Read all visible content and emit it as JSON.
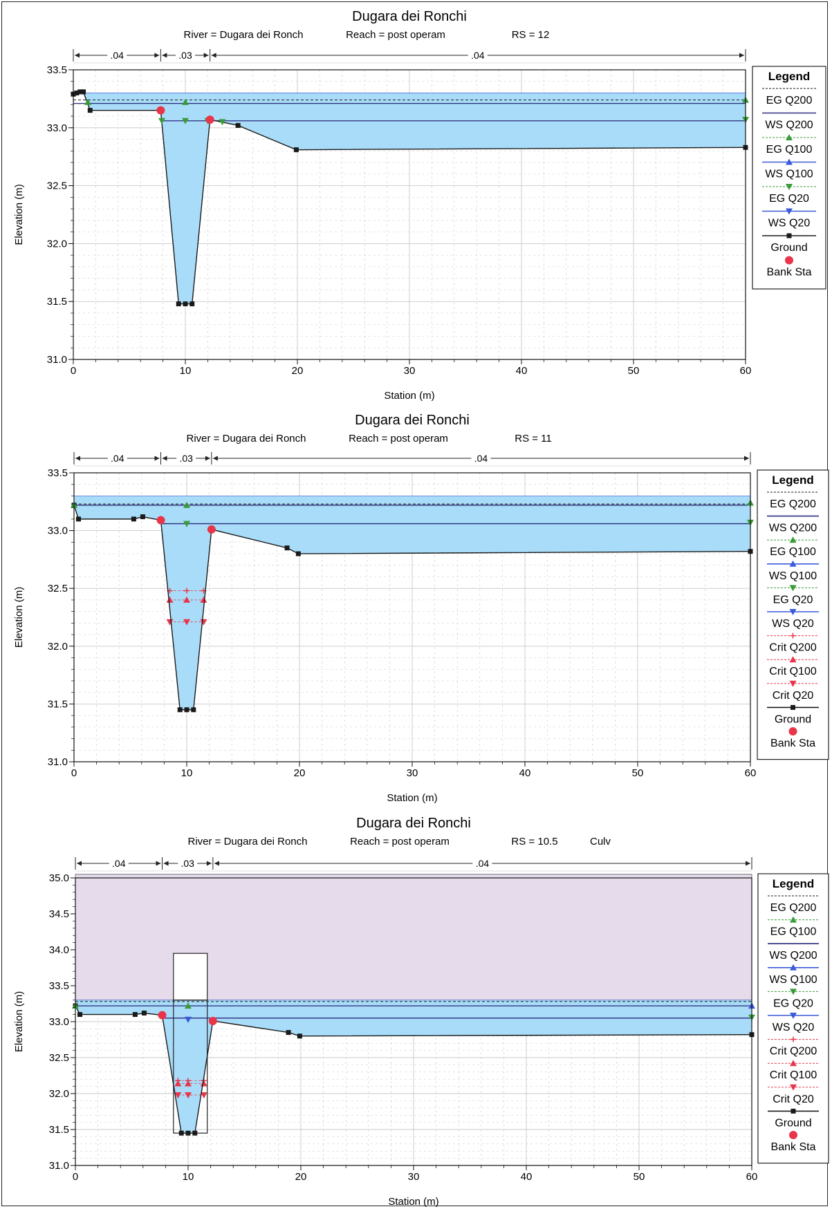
{
  "chart_data": [
    {
      "type": "line",
      "title": "Dugara dei Ronchi",
      "subtitle": {
        "river": "River = Dugara dei Ronch",
        "reach": "Reach = post operam",
        "rs": "RS = 12",
        "extra": ""
      },
      "xlabel": "Station (m)",
      "ylabel": "Elevation (m)",
      "xlim": [
        0,
        60
      ],
      "ylim": [
        31.0,
        33.5
      ],
      "xticks": [
        "0",
        "10",
        "20",
        "30",
        "40",
        "50",
        "60"
      ],
      "yticks": [
        "31.0",
        "31.5",
        "32.0",
        "32.5",
        "33.0",
        "33.5"
      ],
      "manning": [
        {
          "label": ".04",
          "from": 0,
          "to": 7.8
        },
        {
          "label": ".03",
          "from": 7.8,
          "to": 12.2
        },
        {
          "label": ".04",
          "from": 12.2,
          "to": 60
        }
      ],
      "ground": {
        "x": [
          0,
          0.3,
          0.6,
          0.9,
          1.5,
          7.8,
          9.4,
          10,
          10.6,
          12.2,
          14.7,
          19.9,
          60
        ],
        "y": [
          33.29,
          33.3,
          33.31,
          33.31,
          33.15,
          33.15,
          31.48,
          31.48,
          31.48,
          33.07,
          33.02,
          32.81,
          32.83
        ]
      },
      "bank_stations": {
        "x": [
          7.8,
          12.2
        ],
        "y": [
          33.15,
          33.07
        ]
      },
      "water": {
        "eg": 33.24,
        "ws": 33.21,
        "ws_low": 33.06,
        "top": 33.3
      },
      "markers": [
        {
          "x": 10,
          "y": 33.22,
          "shape": "up",
          "color": "#3a9b3a"
        },
        {
          "x": 60,
          "y": 33.24,
          "shape": "up",
          "color": "#3a9b3a"
        },
        {
          "x": 1.3,
          "y": 33.22,
          "shape": "up",
          "color": "#3a9b3a"
        },
        {
          "x": 7.9,
          "y": 33.06,
          "shape": "down",
          "color": "#3a9b3a"
        },
        {
          "x": 10,
          "y": 33.06,
          "shape": "down",
          "color": "#3a9b3a"
        },
        {
          "x": 12.0,
          "y": 33.06,
          "shape": "down",
          "color": "#3a9b3a"
        },
        {
          "x": 13.3,
          "y": 33.05,
          "shape": "down",
          "color": "#3a9b3a"
        },
        {
          "x": 60,
          "y": 33.07,
          "shape": "down",
          "color": "#3a9b3a"
        }
      ],
      "culvert": null,
      "legend_title": "Legend",
      "legend": [
        {
          "label": "EG Q200",
          "style": "dash",
          "color": "#1a1a1a",
          "marker": ""
        },
        {
          "label": "WS Q200",
          "style": "solid",
          "color": "#2a2a7a",
          "marker": ""
        },
        {
          "label": "EG Q100",
          "style": "dash",
          "color": "#3a9b3a",
          "marker": "up"
        },
        {
          "label": "WS Q100",
          "style": "solid",
          "color": "#3a5ad8",
          "marker": "up"
        },
        {
          "label": "EG Q20",
          "style": "dash",
          "color": "#3a9b3a",
          "marker": "down"
        },
        {
          "label": "WS Q20",
          "style": "solid",
          "color": "#3a5ad8",
          "marker": "down"
        },
        {
          "label": "Ground",
          "style": "solid",
          "color": "#1a1a1a",
          "marker": "square"
        },
        {
          "label": "Bank Sta",
          "style": "none",
          "color": "#e8354a",
          "marker": "circle"
        }
      ]
    },
    {
      "type": "line",
      "title": "Dugara dei Ronchi",
      "subtitle": {
        "river": "River = Dugara dei Ronch",
        "reach": "Reach = post operam",
        "rs": "RS = 11",
        "extra": ""
      },
      "xlabel": "Station (m)",
      "ylabel": "Elevation (m)",
      "xlim": [
        0,
        60
      ],
      "ylim": [
        31.0,
        33.5
      ],
      "xticks": [
        "0",
        "10",
        "20",
        "30",
        "40",
        "50",
        "60"
      ],
      "yticks": [
        "31.0",
        "31.5",
        "32.0",
        "32.5",
        "33.0",
        "33.5"
      ],
      "manning": [
        {
          "label": ".04",
          "from": 0,
          "to": 7.7
        },
        {
          "label": ".03",
          "from": 7.7,
          "to": 12.2
        },
        {
          "label": ".04",
          "from": 12.2,
          "to": 60
        }
      ],
      "ground": {
        "x": [
          0,
          0.4,
          5.3,
          6.1,
          7.7,
          9.4,
          10,
          10.6,
          12.2,
          18.9,
          19.9,
          60
        ],
        "y": [
          33.22,
          33.1,
          33.1,
          33.12,
          33.09,
          31.45,
          31.45,
          31.45,
          33.01,
          32.85,
          32.8,
          32.82
        ]
      },
      "bank_stations": {
        "x": [
          7.7,
          12.2
        ],
        "y": [
          33.09,
          33.01
        ]
      },
      "water": {
        "eg": 33.23,
        "ws": 33.22,
        "ws_low": 33.06,
        "top": 33.3
      },
      "crit": [
        32.48,
        32.4,
        32.21
      ],
      "markers": [
        {
          "x": 0,
          "y": 33.22,
          "shape": "up",
          "color": "#3a9b3a"
        },
        {
          "x": 10,
          "y": 33.22,
          "shape": "up",
          "color": "#3a9b3a"
        },
        {
          "x": 60,
          "y": 33.24,
          "shape": "up",
          "color": "#3a9b3a"
        },
        {
          "x": 10,
          "y": 33.06,
          "shape": "down",
          "color": "#3a9b3a"
        },
        {
          "x": 60,
          "y": 33.07,
          "shape": "down",
          "color": "#3a9b3a"
        }
      ],
      "culvert": null,
      "legend_title": "Legend",
      "legend": [
        {
          "label": "EG Q200",
          "style": "dash",
          "color": "#1a1a1a",
          "marker": ""
        },
        {
          "label": "WS Q200",
          "style": "solid",
          "color": "#2a2a7a",
          "marker": ""
        },
        {
          "label": "EG Q100",
          "style": "dash",
          "color": "#3a9b3a",
          "marker": "up"
        },
        {
          "label": "WS Q100",
          "style": "solid",
          "color": "#3a5ad8",
          "marker": "up"
        },
        {
          "label": "EG Q20",
          "style": "dash",
          "color": "#3a9b3a",
          "marker": "down"
        },
        {
          "label": "WS Q20",
          "style": "solid",
          "color": "#3a5ad8",
          "marker": "down"
        },
        {
          "label": "Crit Q200",
          "style": "dash",
          "color": "#e8354a",
          "marker": "plus"
        },
        {
          "label": "Crit Q100",
          "style": "dash",
          "color": "#e8354a",
          "marker": "up"
        },
        {
          "label": "Crit Q20",
          "style": "dash",
          "color": "#e8354a",
          "marker": "down"
        },
        {
          "label": "Ground",
          "style": "solid",
          "color": "#1a1a1a",
          "marker": "square"
        },
        {
          "label": "Bank Sta",
          "style": "none",
          "color": "#e8354a",
          "marker": "circle"
        }
      ]
    },
    {
      "type": "line",
      "title": "Dugara dei Ronchi",
      "subtitle": {
        "river": "River = Dugara dei Ronch",
        "reach": "Reach = post operam",
        "rs": "RS = 10.5",
        "extra": "Culv"
      },
      "xlabel": "Station (m)",
      "ylabel": "Elevation (m)",
      "xlim": [
        0,
        60
      ],
      "ylim": [
        31.0,
        35.0
      ],
      "xticks": [
        "0",
        "10",
        "20",
        "30",
        "40",
        "50",
        "60"
      ],
      "yticks": [
        "31.0",
        "31.5",
        "32.0",
        "32.5",
        "33.0",
        "33.5",
        "34.0",
        "34.5",
        "35.0"
      ],
      "manning": [
        {
          "label": ".04",
          "from": 0,
          "to": 7.7
        },
        {
          "label": ".03",
          "from": 7.7,
          "to": 12.2
        },
        {
          "label": ".04",
          "from": 12.2,
          "to": 60
        }
      ],
      "ground": {
        "x": [
          0,
          0.4,
          5.3,
          6.1,
          7.7,
          9.4,
          10,
          10.6,
          12.2,
          18.9,
          19.9,
          60
        ],
        "y": [
          33.22,
          33.1,
          33.1,
          33.12,
          33.09,
          31.45,
          31.45,
          31.45,
          33.01,
          32.85,
          32.8,
          32.82
        ]
      },
      "bank_stations": {
        "x": [
          7.7,
          12.2
        ],
        "y": [
          33.09,
          33.01
        ]
      },
      "water": {
        "eg": 33.28,
        "ws": 33.22,
        "ws_low": 33.05,
        "top": 33.3
      },
      "crit": [
        32.18,
        32.14,
        31.98
      ],
      "markers": [
        {
          "x": 0,
          "y": 33.22,
          "shape": "up",
          "color": "#3a9b3a"
        },
        {
          "x": 10,
          "y": 33.22,
          "shape": "up",
          "color": "#3a9b3a"
        },
        {
          "x": 60,
          "y": 33.22,
          "shape": "up",
          "color": "#3a5ad8"
        },
        {
          "x": 10,
          "y": 33.03,
          "shape": "down",
          "color": "#3a5ad8"
        },
        {
          "x": 60,
          "y": 33.06,
          "shape": "down",
          "color": "#3a9b3a"
        }
      ],
      "culvert": {
        "x0": 8.7,
        "x1": 11.7,
        "y_bottom": 31.45,
        "y_top": 33.95,
        "ground_fill": 35.05
      },
      "legend_title": "Legend",
      "legend": [
        {
          "label": "EG Q200",
          "style": "dash",
          "color": "#1a1a1a",
          "marker": ""
        },
        {
          "label": "EG Q100",
          "style": "dash",
          "color": "#3a9b3a",
          "marker": "up"
        },
        {
          "label": "WS Q200",
          "style": "solid",
          "color": "#2a2a7a",
          "marker": ""
        },
        {
          "label": "WS Q100",
          "style": "solid",
          "color": "#3a5ad8",
          "marker": "up"
        },
        {
          "label": "EG Q20",
          "style": "dash",
          "color": "#3a9b3a",
          "marker": "down"
        },
        {
          "label": "WS Q20",
          "style": "solid",
          "color": "#3a5ad8",
          "marker": "down"
        },
        {
          "label": "Crit Q200",
          "style": "dash",
          "color": "#e8354a",
          "marker": "plus"
        },
        {
          "label": "Crit Q100",
          "style": "dash",
          "color": "#e8354a",
          "marker": "up"
        },
        {
          "label": "Crit Q20",
          "style": "dash",
          "color": "#e8354a",
          "marker": "down"
        },
        {
          "label": "Ground",
          "style": "solid",
          "color": "#1a1a1a",
          "marker": "square"
        },
        {
          "label": "Bank Sta",
          "style": "none",
          "color": "#e8354a",
          "marker": "circle"
        }
      ]
    }
  ],
  "colors": {
    "water": "#a8dcf8",
    "culvert_fill": "#e6dbeb",
    "grid": "#c8c8c8",
    "axis": "#111111"
  }
}
